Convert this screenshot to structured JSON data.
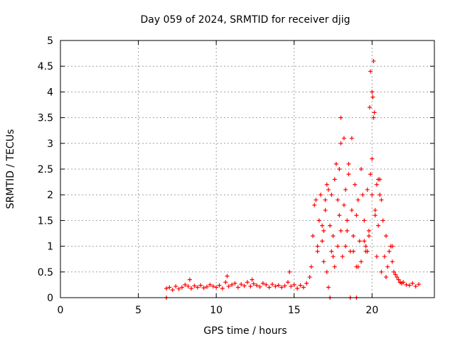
{
  "chart_data": {
    "type": "scatter",
    "title": "Day 059 of 2024, SRMTID for receiver djig",
    "xlabel": "GPS time / hours",
    "ylabel": "SRMTID / TECUs",
    "xlim": [
      0,
      24
    ],
    "ylim": [
      0,
      5
    ],
    "xticks": [
      0,
      5,
      10,
      15,
      20
    ],
    "xtick_labels": [
      "0",
      "5",
      "10",
      "15",
      "20"
    ],
    "yticks": [
      0,
      0.5,
      1,
      1.5,
      2,
      2.5,
      3,
      3.5,
      4,
      4.5,
      5
    ],
    "ytick_labels": [
      "0",
      "0.5",
      "1",
      "1.5",
      "2",
      "2.5",
      "3",
      "3.5",
      "4",
      "4.5",
      "5"
    ],
    "grid": true,
    "marker": "+",
    "series": [
      {
        "name": "SRMTID",
        "color": "#ff0000",
        "x": [
          6.8,
          7.0,
          7.2,
          7.4,
          7.6,
          7.8,
          8.0,
          8.2,
          8.4,
          8.6,
          8.8,
          9.0,
          9.2,
          9.4,
          9.6,
          9.8,
          10.0,
          10.2,
          10.4,
          10.6,
          10.8,
          11.0,
          11.2,
          11.4,
          11.6,
          11.8,
          12.0,
          12.2,
          12.4,
          12.6,
          12.8,
          13.0,
          13.2,
          13.4,
          13.6,
          13.8,
          14.0,
          14.2,
          14.4,
          14.6,
          14.8,
          15.0,
          15.2,
          15.4,
          15.6,
          15.8,
          16.0,
          16.1,
          16.2,
          16.3,
          16.4,
          16.5,
          16.6,
          16.7,
          16.8,
          16.9,
          17.0,
          17.1,
          17.2,
          17.3,
          17.4,
          17.5,
          17.6,
          17.7,
          17.8,
          17.9,
          18.0,
          18.1,
          18.2,
          18.3,
          18.4,
          18.5,
          18.6,
          18.7,
          18.8,
          18.9,
          19.0,
          19.1,
          19.2,
          19.3,
          19.4,
          19.5,
          19.6,
          19.7,
          19.8,
          19.9,
          20.0,
          20.1,
          20.2,
          20.3,
          20.4,
          20.5,
          20.6,
          20.7,
          20.8,
          20.9,
          21.0,
          21.1,
          21.2,
          21.3,
          21.4,
          21.5,
          21.6,
          21.7,
          21.8,
          21.9,
          22.0,
          22.2,
          22.4,
          22.6,
          22.8,
          23.0,
          6.8,
          17.3,
          18.6,
          19.0,
          16.5,
          17.0,
          17.5,
          18.0,
          18.5,
          19.0,
          19.5,
          20.0,
          20.5,
          17.2,
          17.8,
          18.3,
          18.8,
          19.3,
          19.8,
          20.2,
          20.6,
          16.8,
          17.6,
          18.4,
          19.1,
          19.7,
          20.3,
          19.9,
          20.0,
          19.85,
          20.05,
          20.1,
          20.15,
          18.0,
          18.2,
          17.9,
          17.4,
          18.7,
          16.9,
          17.1,
          20.4,
          19.6,
          10.7,
          14.7,
          12.3,
          8.3,
          21.3,
          20.9,
          21.8
        ],
        "y": [
          0.18,
          0.2,
          0.15,
          0.22,
          0.17,
          0.2,
          0.25,
          0.22,
          0.18,
          0.23,
          0.2,
          0.24,
          0.19,
          0.21,
          0.25,
          0.22,
          0.2,
          0.24,
          0.18,
          0.3,
          0.22,
          0.25,
          0.28,
          0.2,
          0.26,
          0.23,
          0.3,
          0.22,
          0.27,
          0.24,
          0.21,
          0.28,
          0.25,
          0.2,
          0.26,
          0.22,
          0.24,
          0.2,
          0.23,
          0.3,
          0.22,
          0.25,
          0.18,
          0.24,
          0.2,
          0.28,
          0.4,
          0.6,
          1.2,
          1.8,
          1.9,
          0.9,
          1.5,
          2.0,
          1.1,
          0.7,
          1.9,
          0.5,
          2.1,
          1.4,
          0.9,
          1.2,
          2.3,
          2.6,
          1.0,
          1.6,
          3.5,
          0.8,
          1.8,
          2.1,
          1.3,
          2.6,
          0.9,
          1.7,
          1.2,
          2.2,
          0.6,
          1.9,
          1.1,
          0.7,
          2.0,
          1.5,
          1.0,
          0.9,
          1.3,
          2.4,
          2.7,
          4.6,
          1.7,
          2.2,
          1.4,
          2.0,
          1.9,
          1.5,
          0.8,
          0.4,
          0.6,
          0.9,
          1.0,
          0.7,
          0.5,
          0.45,
          0.4,
          0.35,
          0.3,
          0.28,
          0.3,
          0.25,
          0.24,
          0.28,
          0.22,
          0.26,
          0.0,
          0.0,
          0.0,
          0.0,
          1.0,
          1.7,
          0.8,
          1.3,
          2.4,
          1.6,
          1.1,
          2.0,
          2.3,
          0.2,
          1.9,
          1.0,
          0.9,
          2.5,
          1.2,
          1.6,
          0.5,
          1.4,
          0.6,
          1.5,
          0.6,
          2.1,
          0.8,
          4.4,
          4.0,
          3.7,
          3.9,
          3.5,
          3.6,
          3.0,
          3.1,
          2.5,
          2.0,
          3.1,
          1.3,
          2.2,
          2.3,
          0.9,
          0.42,
          0.5,
          0.35,
          0.35,
          1.0,
          1.2,
          0.3
        ]
      }
    ]
  }
}
